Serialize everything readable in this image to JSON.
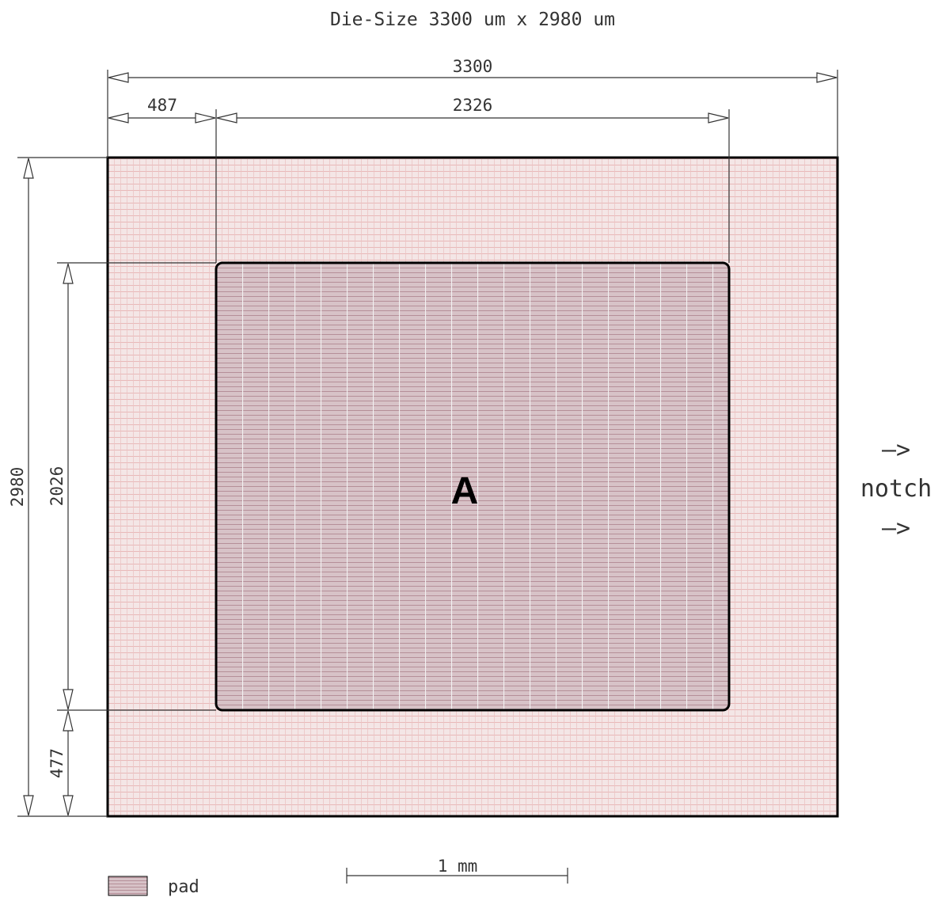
{
  "title": "Die-Size 3300 um x 2980 um",
  "dimensions": {
    "width_total": "3300",
    "width_offset": "487",
    "width_pad": "2326",
    "height_total": "2980",
    "height_pad": "2026",
    "height_offset": "477"
  },
  "pad": {
    "label": "A"
  },
  "notch": {
    "arrow_top": "—>",
    "label": "notch",
    "arrow_bottom": "—>"
  },
  "legend": {
    "label": "pad"
  },
  "scale_bar": {
    "label": "1 mm"
  },
  "colors": {
    "die_fill": "#f4e6e6",
    "die_grid": "#e2a8a8",
    "pad_fill": "#d7c2c7",
    "pad_grid_v": "#f2f2f2",
    "pad_grid_h": "#b58f98",
    "outline": "#000000",
    "dimension_line": "#333333"
  }
}
